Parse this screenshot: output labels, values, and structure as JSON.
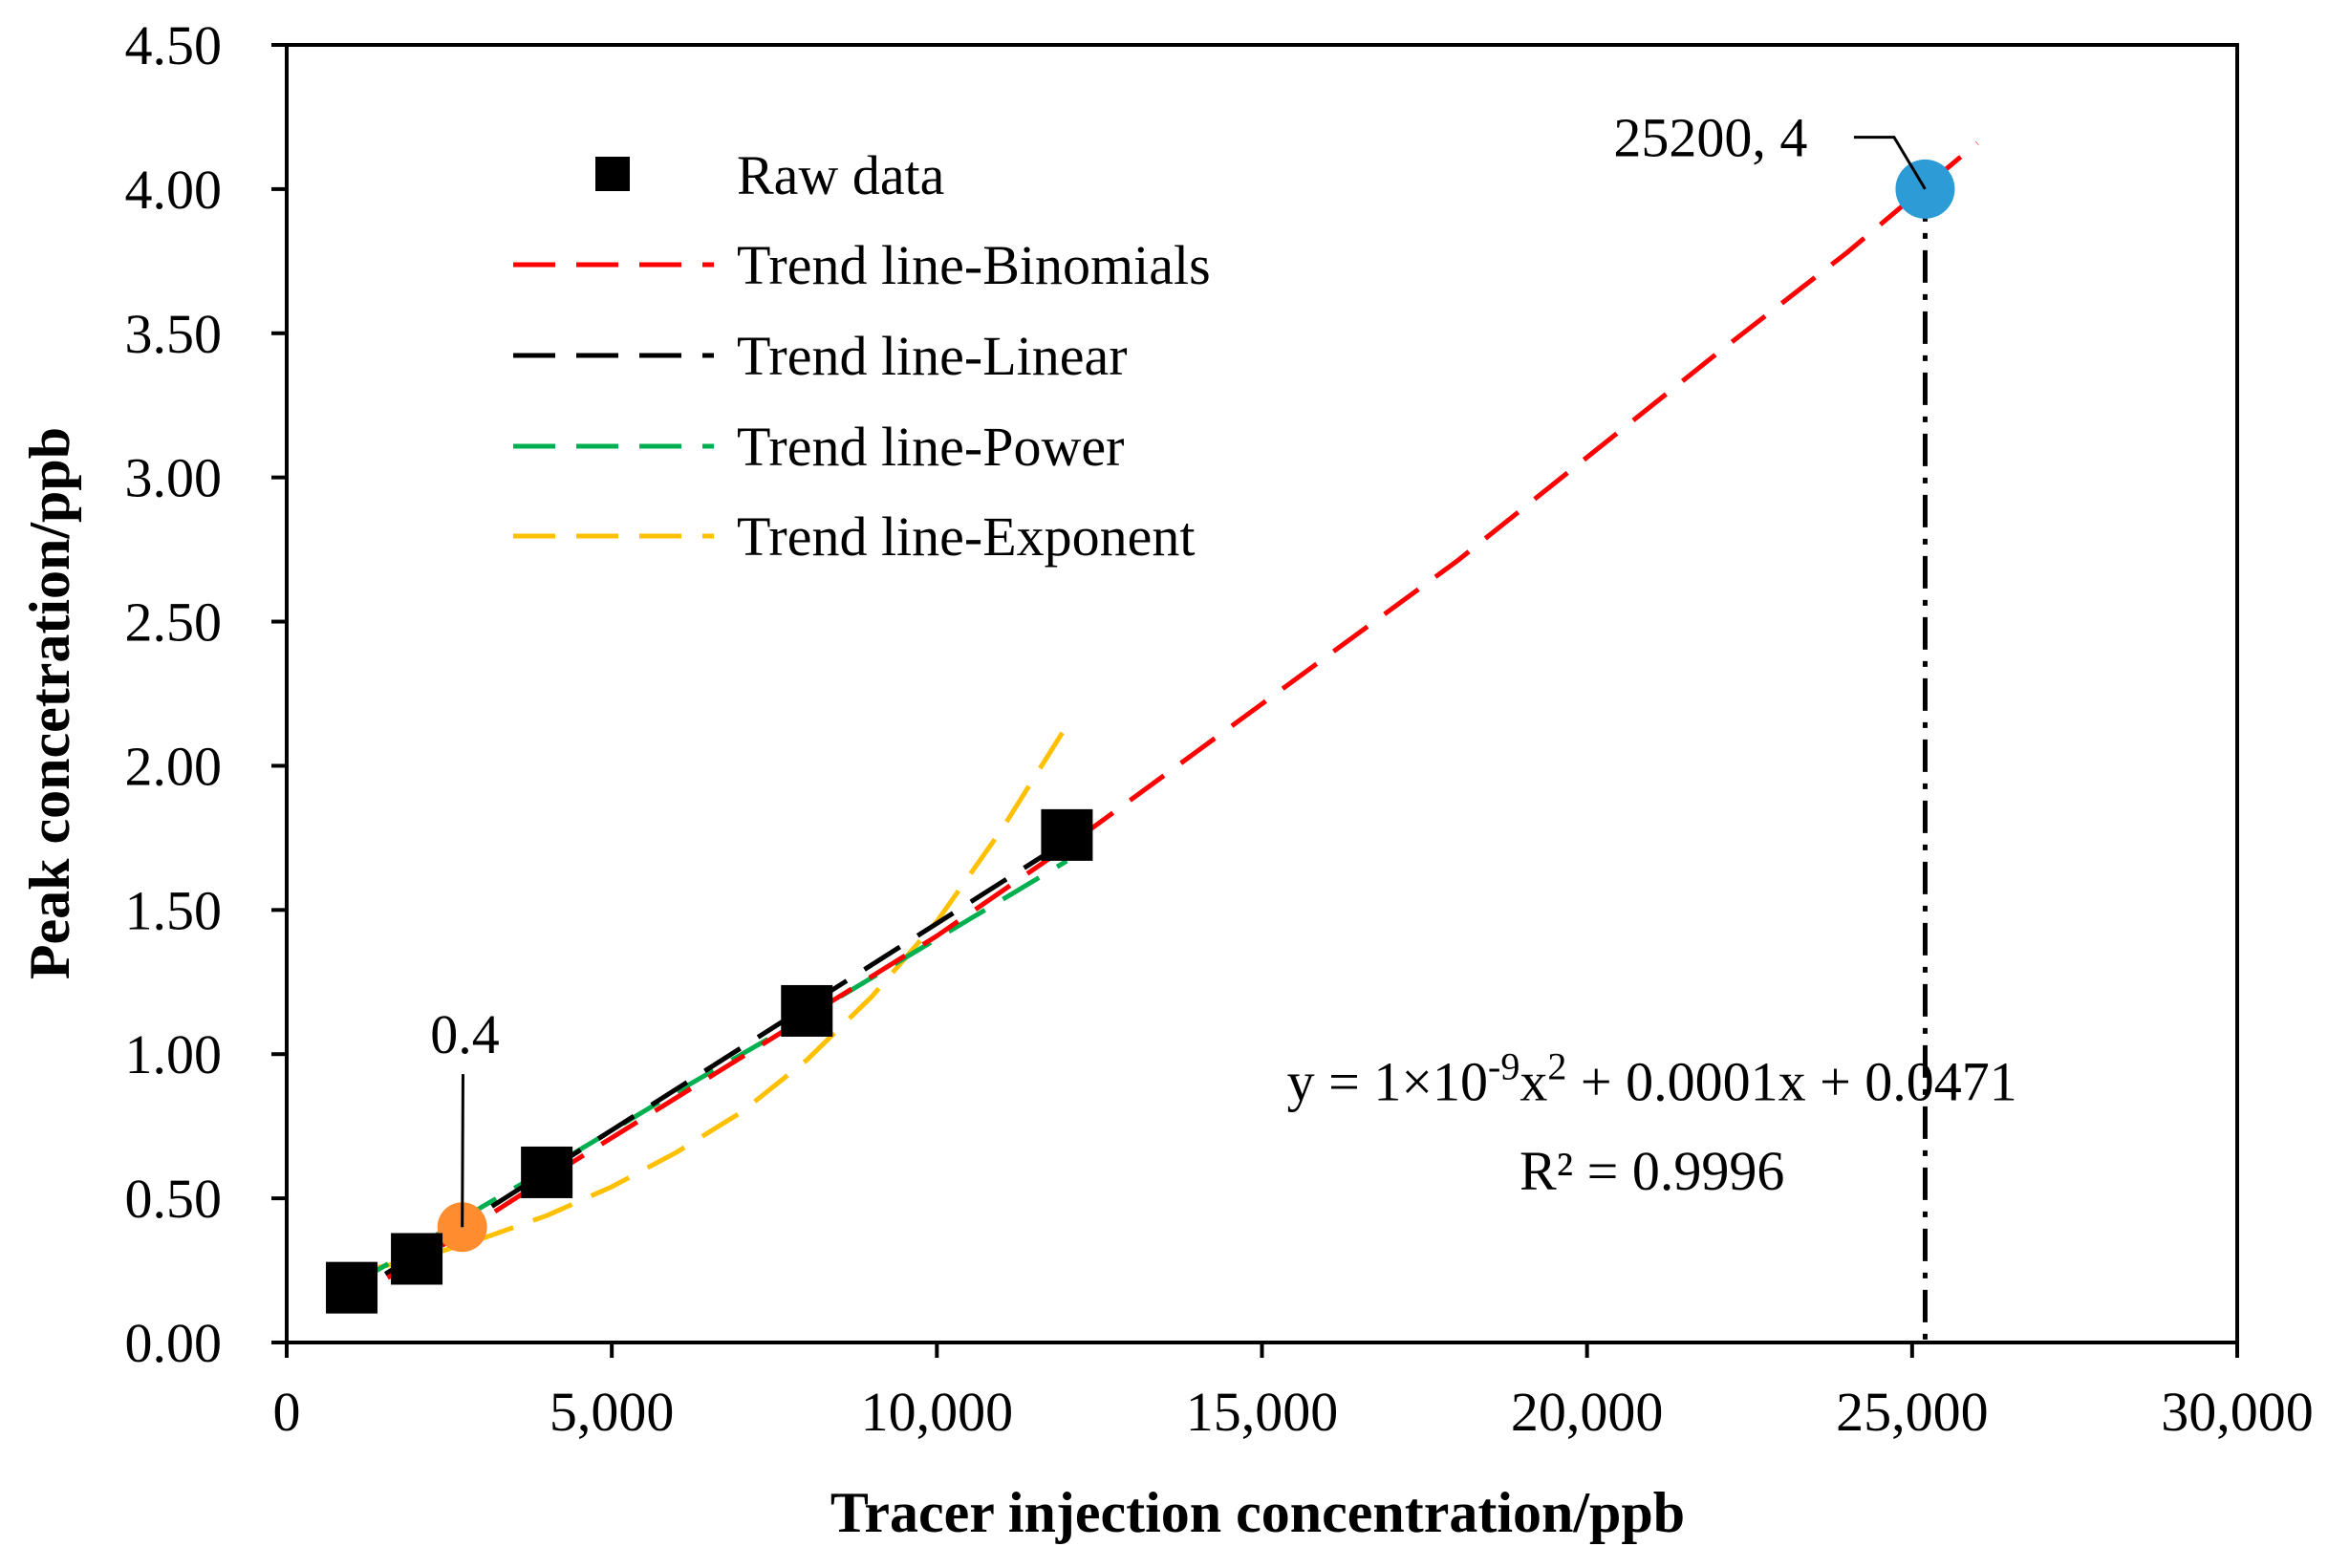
{
  "chart_data": {
    "type": "scatter",
    "xlabel": "Tracer injection concentration/ppb",
    "ylabel": "Peak concetration/ppb",
    "xlim": [
      0,
      30000
    ],
    "ylim": [
      0,
      4.5
    ],
    "x_ticks": [
      0,
      5000,
      10000,
      15000,
      20000,
      25000,
      30000
    ],
    "x_tick_labels": [
      "0",
      "5,000",
      "10,000",
      "15,000",
      "20,000",
      "25,000",
      "30,000"
    ],
    "y_ticks": [
      0,
      0.5,
      1.0,
      1.5,
      2.0,
      2.5,
      3.0,
      3.5,
      4.0,
      4.5
    ],
    "y_tick_labels": [
      "0.00",
      "0.50",
      "1.00",
      "1.50",
      "2.00",
      "2.50",
      "3.00",
      "3.50",
      "4.00",
      "4.50"
    ],
    "grid": false,
    "legend_position": "upper-left",
    "series": [
      {
        "name": "Raw data",
        "kind": "markers",
        "color": "#000000",
        "x": [
          1000,
          2000,
          4000,
          8000,
          12000
        ],
        "y": [
          0.19,
          0.29,
          0.59,
          1.15,
          1.76
        ]
      },
      {
        "name": "Trend line-Binomials",
        "kind": "dashed-line",
        "color": "#ff0000",
        "x": [
          700,
          2000,
          4000,
          6000,
          8000,
          10000,
          12000,
          14000,
          16000,
          18000,
          20000,
          22000,
          24000,
          26000
        ],
        "y": [
          0.12,
          0.28,
          0.57,
          0.85,
          1.13,
          1.41,
          1.72,
          2.05,
          2.38,
          2.71,
          3.07,
          3.43,
          3.78,
          4.16
        ]
      },
      {
        "name": "Trend line-Linear",
        "kind": "dashed-line",
        "color": "#000000",
        "x": [
          700,
          12000
        ],
        "y": [
          0.12,
          1.74
        ]
      },
      {
        "name": "Trend line-Power",
        "kind": "dashed-line",
        "color": "#00b050",
        "x": [
          1000,
          2000,
          3000,
          4000,
          6000,
          8000,
          10000,
          12000
        ],
        "y": [
          0.2,
          0.33,
          0.47,
          0.6,
          0.87,
          1.13,
          1.4,
          1.67
        ]
      },
      {
        "name": "Trend line-Exponent",
        "kind": "dashed-line",
        "color": "#ffc000",
        "x": [
          1000,
          2000,
          3000,
          4000,
          5000,
          6000,
          7000,
          8000,
          9000,
          10000,
          11000,
          12000
        ],
        "y": [
          0.24,
          0.29,
          0.36,
          0.44,
          0.54,
          0.66,
          0.8,
          0.98,
          1.2,
          1.46,
          1.78,
          2.14
        ]
      }
    ],
    "highlight_points": [
      {
        "x": 25200,
        "y": 4.0,
        "color": "#2d9bd6",
        "label": "25200, 4",
        "label_x": 21900,
        "label_y": 4.18
      },
      {
        "x": 2700,
        "y": 0.4,
        "color": "#ff8c2e",
        "label": "0.4",
        "label_x": 2300,
        "label_y": 1.07
      }
    ],
    "vertical_line": {
      "x": 25200,
      "y_from": 0,
      "y_to": 4.0,
      "style": "dash-dot"
    },
    "equation_text": "y = 1×10",
    "equation_exponent": "-9",
    "equation_tail": "x",
    "equation_square": "2",
    "equation_end": " + 0.0001x + 0.0471",
    "r_squared_text": "R² = 0.9996",
    "equation_position_data": {
      "x": 21000,
      "y": 0.84
    },
    "r2_position_data": {
      "x": 21000,
      "y": 0.53
    }
  }
}
